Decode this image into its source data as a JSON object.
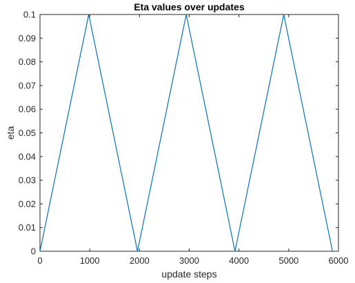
{
  "chart_data": {
    "type": "line",
    "title": "Eta values over updates",
    "xlabel": "update steps",
    "ylabel": "eta",
    "xlim": [
      0,
      6000
    ],
    "ylim": [
      0,
      0.1
    ],
    "xticks": [
      0,
      1000,
      2000,
      3000,
      4000,
      5000,
      6000
    ],
    "xtick_labels": [
      "0",
      "1000",
      "2000",
      "3000",
      "4000",
      "5000",
      "6000"
    ],
    "yticks": [
      0,
      0.01,
      0.02,
      0.03,
      0.04,
      0.05,
      0.06,
      0.07,
      0.08,
      0.09,
      0.1
    ],
    "ytick_labels": [
      "0",
      "0.01",
      "0.02",
      "0.03",
      "0.04",
      "0.05",
      "0.06",
      "0.07",
      "0.08",
      "0.09",
      "0.1"
    ],
    "grid": false,
    "series": [
      {
        "color": "#0072bd",
        "x": [
          0,
          980,
          1960,
          2940,
          3920,
          4900,
          5880
        ],
        "y": [
          0,
          0.1,
          0,
          0.1,
          0,
          0.1,
          0
        ]
      }
    ]
  }
}
